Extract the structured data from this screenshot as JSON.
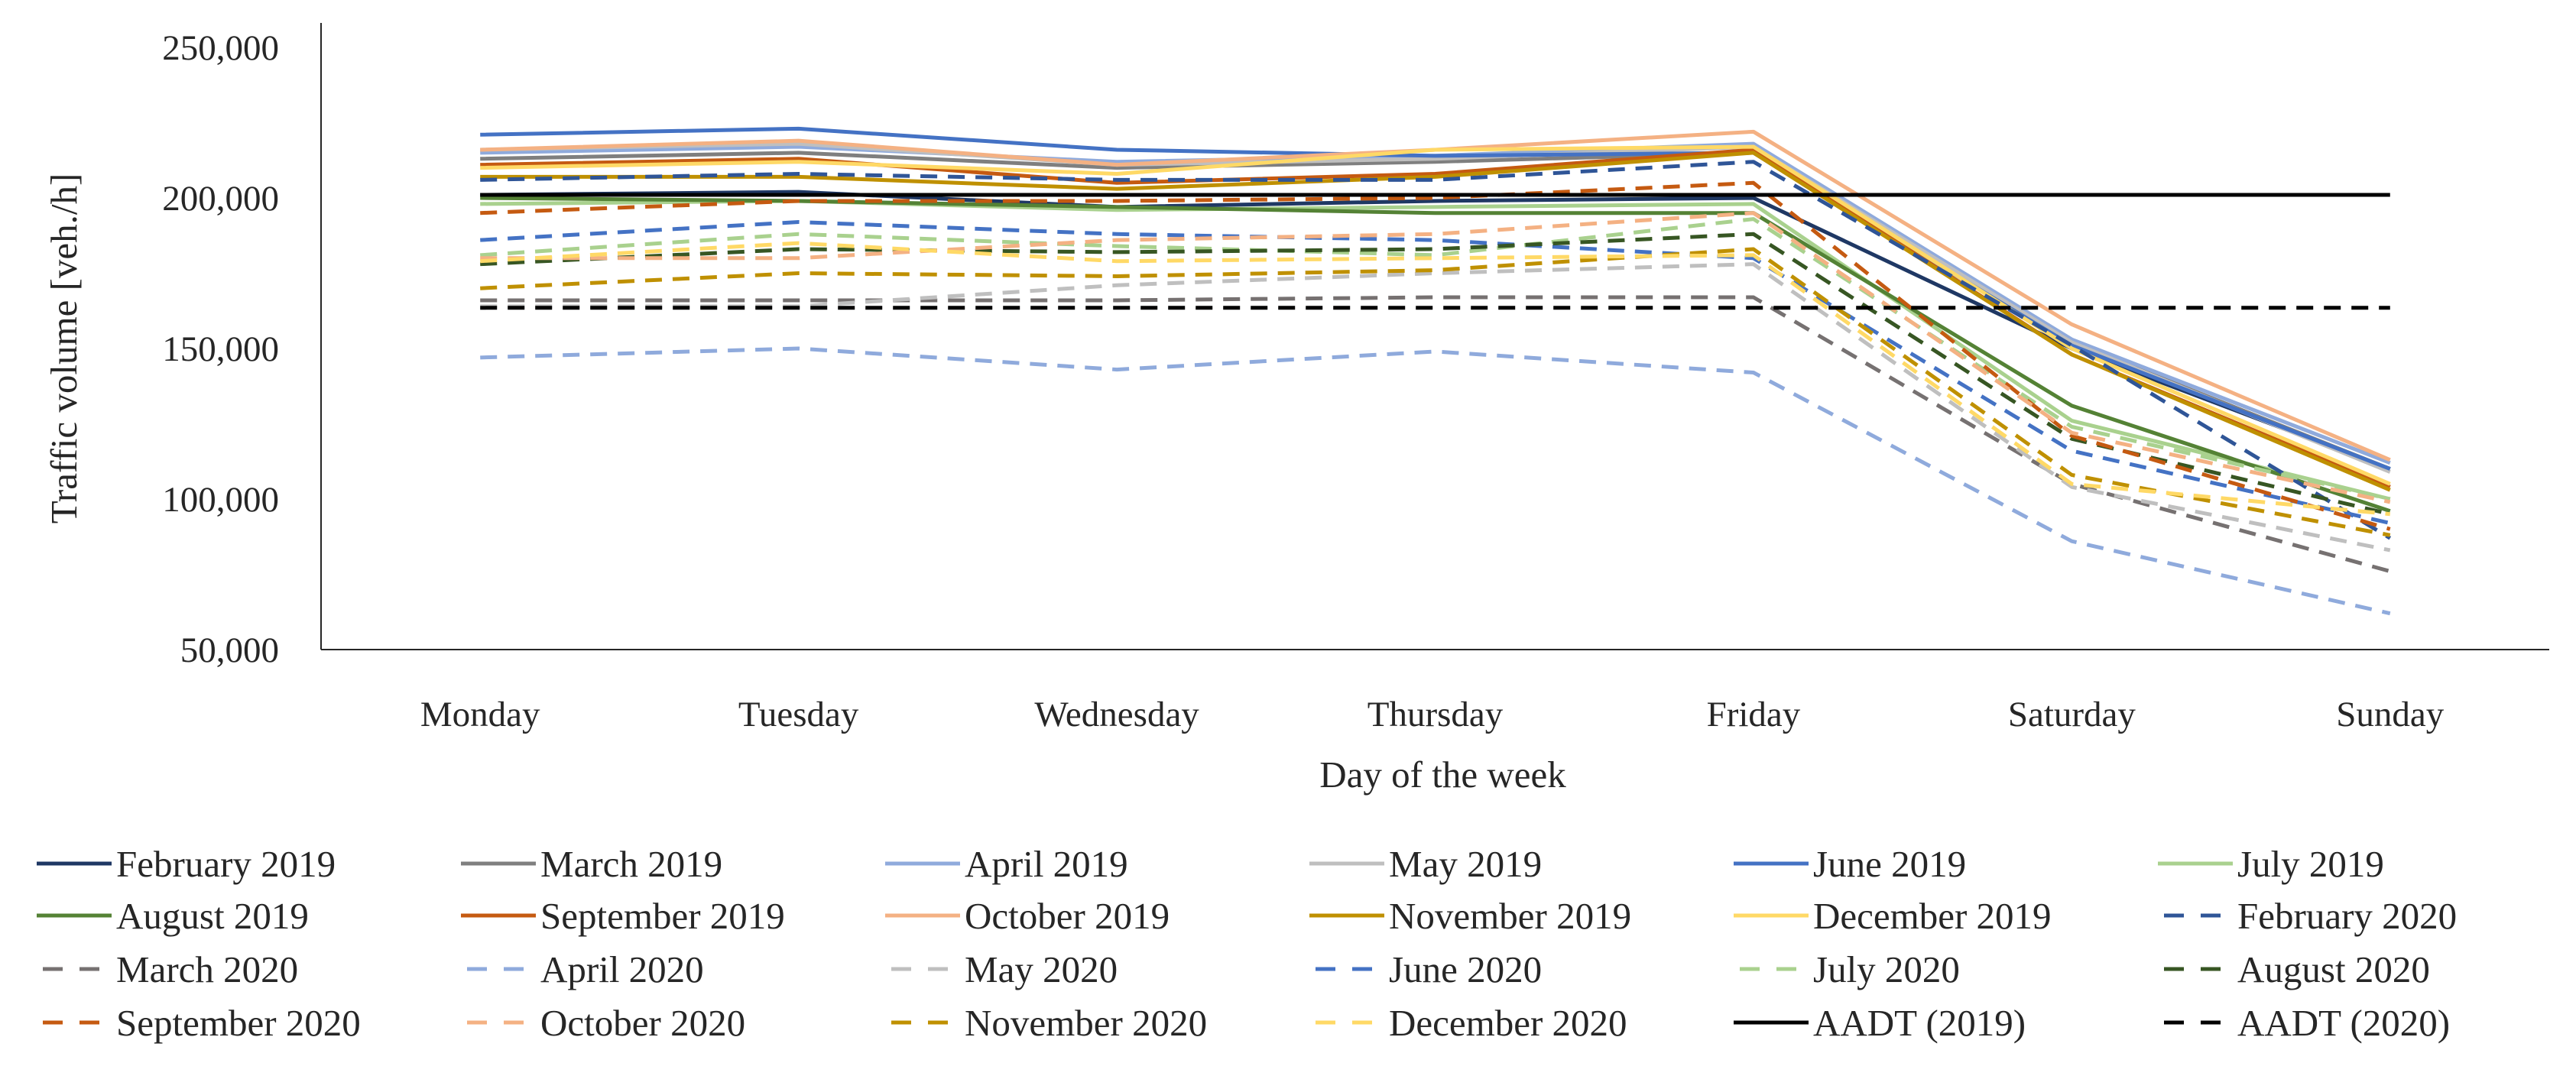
{
  "chart_data": {
    "type": "line",
    "title": "",
    "xlabel": "Day of the week",
    "ylabel": "Traffic volume [veh./h]",
    "ylim": [
      50000,
      250000
    ],
    "yticks": [
      50000,
      100000,
      150000,
      200000,
      250000
    ],
    "ytick_labels": [
      "50,000",
      "100,000",
      "150,000",
      "200,000",
      "250,000"
    ],
    "categories": [
      "Monday",
      "Tuesday",
      "Wednesday",
      "Thursday",
      "Friday",
      "Saturday",
      "Sunday"
    ],
    "legend_position": "bottom",
    "series": [
      {
        "name": "February 2019",
        "color": "#1f3864",
        "dash": false,
        "values": [
          201000,
          202000,
          197000,
          199000,
          200000,
          150000,
          110000
        ]
      },
      {
        "name": "March 2019",
        "color": "#7f7f7f",
        "dash": false,
        "values": [
          213000,
          215000,
          210000,
          212000,
          215000,
          152000,
          110000
        ]
      },
      {
        "name": "April 2019",
        "color": "#8faadc",
        "dash": false,
        "values": [
          215000,
          217000,
          212000,
          214000,
          218000,
          153000,
          112000
        ]
      },
      {
        "name": "May 2019",
        "color": "#bfbfbf",
        "dash": false,
        "values": [
          216000,
          218000,
          211000,
          213000,
          217000,
          152000,
          109000
        ]
      },
      {
        "name": "June 2019",
        "color": "#4472c4",
        "dash": false,
        "values": [
          221000,
          223000,
          216000,
          214000,
          215000,
          151000,
          110000
        ]
      },
      {
        "name": "July 2019",
        "color": "#a9d18e",
        "dash": false,
        "values": [
          198000,
          199000,
          196000,
          197000,
          198000,
          126000,
          100000
        ]
      },
      {
        "name": "August 2019",
        "color": "#548235",
        "dash": false,
        "values": [
          200000,
          199000,
          197000,
          195000,
          195000,
          131000,
          96000
        ]
      },
      {
        "name": "September 2019",
        "color": "#c55a11",
        "dash": false,
        "values": [
          211000,
          213000,
          205000,
          208000,
          216000,
          148000,
          104000
        ]
      },
      {
        "name": "October 2019",
        "color": "#f4b183",
        "dash": false,
        "values": [
          216000,
          219000,
          211000,
          216000,
          222000,
          158000,
          113000
        ]
      },
      {
        "name": "November 2019",
        "color": "#bf9000",
        "dash": false,
        "values": [
          207000,
          207000,
          203000,
          207000,
          215000,
          148000,
          103000
        ]
      },
      {
        "name": "December 2019",
        "color": "#ffd966",
        "dash": false,
        "values": [
          210000,
          212000,
          208000,
          216000,
          217000,
          150000,
          105000
        ]
      },
      {
        "name": "February 2020",
        "color": "#2f5597",
        "dash": true,
        "values": [
          206000,
          208000,
          206000,
          206000,
          212000,
          151000,
          87000
        ]
      },
      {
        "name": "March 2020",
        "color": "#767171",
        "dash": true,
        "values": [
          166000,
          166000,
          166000,
          167000,
          167000,
          105000,
          76000
        ]
      },
      {
        "name": "April 2020",
        "color": "#8faadc",
        "dash": true,
        "values": [
          147000,
          150000,
          143000,
          149000,
          142000,
          86000,
          62000
        ]
      },
      {
        "name": "May 2020",
        "color": "#bfbfbf",
        "dash": true,
        "values": [
          164000,
          164000,
          171000,
          175000,
          178000,
          104000,
          83000
        ]
      },
      {
        "name": "June 2020",
        "color": "#4472c4",
        "dash": true,
        "values": [
          186000,
          192000,
          188000,
          186000,
          180000,
          116000,
          92000
        ]
      },
      {
        "name": "July 2020",
        "color": "#a9d18e",
        "dash": true,
        "values": [
          181000,
          188000,
          184000,
          181000,
          193000,
          124000,
          100000
        ]
      },
      {
        "name": "August 2020",
        "color": "#375623",
        "dash": true,
        "values": [
          178000,
          183000,
          182000,
          183000,
          188000,
          120000,
          95000
        ]
      },
      {
        "name": "September 2020",
        "color": "#c55a11",
        "dash": true,
        "values": [
          195000,
          199000,
          199000,
          200000,
          205000,
          121000,
          90000
        ]
      },
      {
        "name": "October 2020",
        "color": "#f4b183",
        "dash": true,
        "values": [
          180000,
          180000,
          186000,
          188000,
          195000,
          122000,
          99000
        ]
      },
      {
        "name": "November 2020",
        "color": "#bf9000",
        "dash": true,
        "values": [
          170000,
          175000,
          174000,
          176000,
          183000,
          108000,
          88000
        ]
      },
      {
        "name": "December 2020",
        "color": "#ffd966",
        "dash": true,
        "values": [
          179000,
          185000,
          179000,
          180000,
          181000,
          105000,
          95000
        ]
      },
      {
        "name": "AADT (2019)",
        "color": "#000000",
        "dash": false,
        "values": [
          201000,
          201000,
          201000,
          201000,
          201000,
          201000,
          201000
        ]
      },
      {
        "name": "AADT (2020)",
        "color": "#000000",
        "dash": true,
        "values": [
          163500,
          163500,
          163500,
          163500,
          163500,
          163500,
          163500
        ]
      }
    ]
  }
}
